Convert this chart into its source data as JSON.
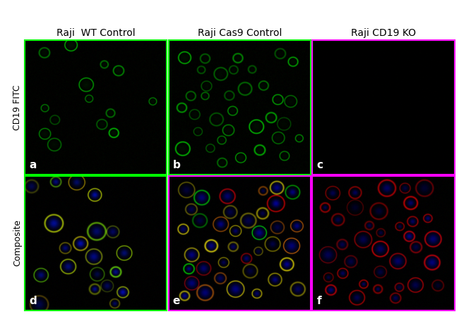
{
  "col_labels": [
    "Raji  WT Control",
    "Raji Cas9 Control",
    "Raji CD19 KO"
  ],
  "row_labels": [
    "CD19 FITC",
    "Composite"
  ],
  "panel_letters": [
    [
      "a",
      "b",
      "c"
    ],
    [
      "d",
      "e",
      "f"
    ]
  ],
  "background_color": "#000000",
  "label_color": "#000000",
  "panel_letter_color": "#ffffff",
  "col_label_fontsize": 10,
  "row_label_fontsize": 9,
  "panel_letter_fontsize": 11,
  "figure_bg": "#ffffff",
  "border_colors_top": [
    "#00ff00",
    "#00ff00",
    "#ff00ff"
  ],
  "border_colors_bottom": [
    "#00ff00",
    "#ff00ff",
    "#ff00ff"
  ]
}
